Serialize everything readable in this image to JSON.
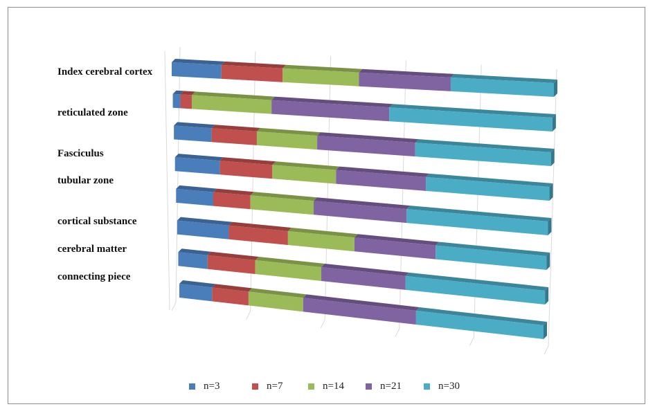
{
  "chart_data": {
    "type": "bar",
    "orientation": "horizontal",
    "stacked": "100%",
    "style": "3d",
    "category_labels_shown": [
      "Index cerebral cortex",
      "reticulated zone",
      "Fasciculus",
      "tubular zone",
      "cortical substance",
      "cerebral matter",
      "connecting piece"
    ],
    "series": [
      {
        "name": "n=3",
        "color": "#4a7ebb",
        "values": [
          13,
          2,
          10,
          12,
          10,
          14,
          8,
          9
        ]
      },
      {
        "name": "n=7",
        "color": "#c0504d",
        "values": [
          16,
          3,
          12,
          14,
          10,
          16,
          13,
          10
        ]
      },
      {
        "name": "n=14",
        "color": "#9bbb59",
        "values": [
          20,
          21,
          16,
          17,
          17,
          18,
          18,
          15
        ]
      },
      {
        "name": "n=21",
        "color": "#8064a2",
        "values": [
          24,
          31,
          26,
          24,
          25,
          22,
          23,
          31
        ]
      },
      {
        "name": "n=30",
        "color": "#4bacc6",
        "values": [
          27,
          43,
          36,
          33,
          38,
          30,
          38,
          35
        ]
      }
    ],
    "xlim": [
      0,
      100
    ],
    "grid": true,
    "legend_position": "bottom"
  }
}
